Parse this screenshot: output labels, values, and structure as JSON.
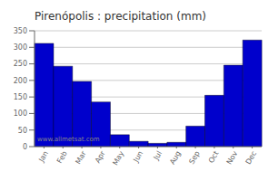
{
  "chart_data": {
    "type": "bar",
    "title": "Pirenópolis : precipitation (mm)",
    "categories": [
      "Jan",
      "Feb",
      "Mar",
      "Apr",
      "May",
      "Jun",
      "Jul",
      "Aug",
      "Sep",
      "Oct",
      "Nov",
      "Dec"
    ],
    "values": [
      312,
      243,
      197,
      135,
      36,
      16,
      10,
      13,
      62,
      155,
      246,
      322
    ],
    "color": "#0000cc",
    "ylim": [
      0,
      350
    ],
    "yticks": [
      0,
      50,
      100,
      150,
      200,
      250,
      300,
      350
    ],
    "grid": true,
    "annotations": [
      "www.allmetsat.com"
    ]
  }
}
